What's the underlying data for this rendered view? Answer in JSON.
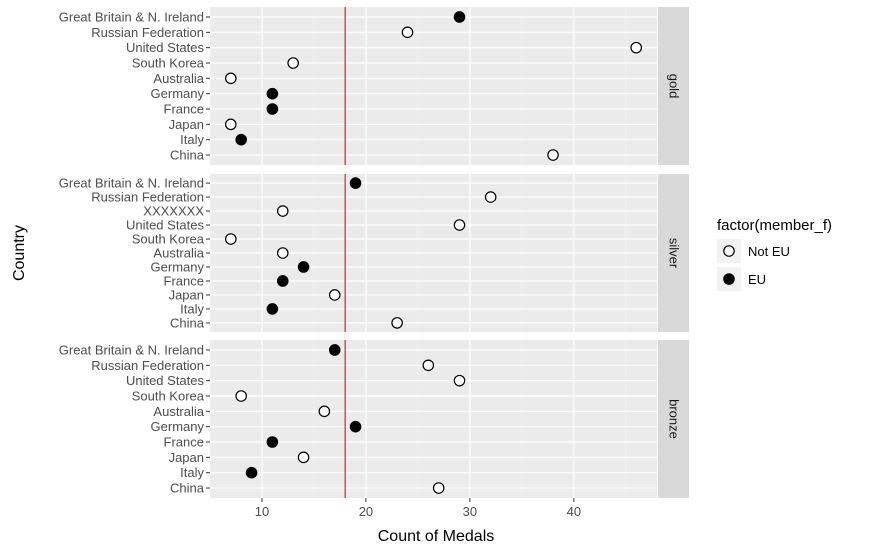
{
  "chart_data": {
    "type": "scatter",
    "title": "",
    "xlabel": "Count of Medals",
    "ylabel": "Country",
    "xlim": [
      5,
      48
    ],
    "x_ticks": [
      10,
      20,
      30,
      40
    ],
    "reference_line": {
      "x": 18,
      "color": "#cc0000"
    },
    "legend": {
      "title": "factor(member_f)",
      "position": "right",
      "entries": [
        {
          "label": "Not EU",
          "marker": "open-circle"
        },
        {
          "label": "EU",
          "marker": "filled-circle"
        }
      ]
    },
    "panels": [
      {
        "facet": "gold",
        "points": [
          {
            "country": "Great Britain & N. Ireland",
            "value": 29,
            "group": "EU"
          },
          {
            "country": "Russian Federation",
            "value": 24,
            "group": "Not EU"
          },
          {
            "country": "United States",
            "value": 46,
            "group": "Not EU"
          },
          {
            "country": "South Korea",
            "value": 13,
            "group": "Not EU"
          },
          {
            "country": "Australia",
            "value": 7,
            "group": "Not EU"
          },
          {
            "country": "Germany",
            "value": 11,
            "group": "EU"
          },
          {
            "country": "France",
            "value": 11,
            "group": "EU"
          },
          {
            "country": "Japan",
            "value": 7,
            "group": "Not EU"
          },
          {
            "country": "Italy",
            "value": 8,
            "group": "EU"
          },
          {
            "country": "China",
            "value": 38,
            "group": "Not EU"
          }
        ]
      },
      {
        "facet": "silver",
        "points": [
          {
            "country": "Great Britain & N. Ireland",
            "value": 19,
            "group": "EU"
          },
          {
            "country": "Russian Federation",
            "value": 32,
            "group": "Not EU"
          },
          {
            "country": "XXXXXXX",
            "value": 12,
            "group": "Not EU"
          },
          {
            "country": "United States",
            "value": 29,
            "group": "Not EU"
          },
          {
            "country": "South Korea",
            "value": 7,
            "group": "Not EU"
          },
          {
            "country": "Australia",
            "value": 12,
            "group": "Not EU"
          },
          {
            "country": "Germany",
            "value": 14,
            "group": "EU"
          },
          {
            "country": "France",
            "value": 12,
            "group": "EU"
          },
          {
            "country": "Japan",
            "value": 17,
            "group": "Not EU"
          },
          {
            "country": "Italy",
            "value": 11,
            "group": "EU"
          },
          {
            "country": "China",
            "value": 23,
            "group": "Not EU"
          }
        ]
      },
      {
        "facet": "bronze",
        "points": [
          {
            "country": "Great Britain & N. Ireland",
            "value": 17,
            "group": "EU"
          },
          {
            "country": "Russian Federation",
            "value": 26,
            "group": "Not EU"
          },
          {
            "country": "United States",
            "value": 29,
            "group": "Not EU"
          },
          {
            "country": "South Korea",
            "value": 8,
            "group": "Not EU"
          },
          {
            "country": "Australia",
            "value": 16,
            "group": "Not EU"
          },
          {
            "country": "Germany",
            "value": 19,
            "group": "EU"
          },
          {
            "country": "France",
            "value": 11,
            "group": "EU"
          },
          {
            "country": "Japan",
            "value": 14,
            "group": "Not EU"
          },
          {
            "country": "Italy",
            "value": 9,
            "group": "EU"
          },
          {
            "country": "China",
            "value": 27,
            "group": "Not EU"
          }
        ]
      }
    ]
  }
}
